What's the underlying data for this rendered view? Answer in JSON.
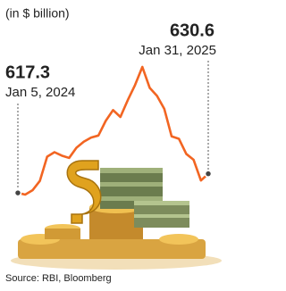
{
  "chart_data": {
    "type": "line",
    "subtitle": "(in $ billion)",
    "categories": [
      "Jan 5, 2024",
      null,
      null,
      null,
      null,
      null,
      null,
      null,
      null,
      null,
      null,
      null,
      null,
      null,
      null,
      null,
      null,
      null,
      null,
      null,
      null,
      null,
      null,
      null,
      null,
      null,
      "Jan 31, 2025"
    ],
    "values": [
      617.3,
      616.1,
      619.1,
      625.6,
      642.5,
      645.6,
      643.2,
      641.6,
      648.7,
      652.9,
      655.8,
      657.2,
      667.4,
      674.9,
      670.1,
      681.7,
      692.3,
      704.9,
      690.4,
      684.8,
      675.7,
      656.6,
      654.9,
      644.4,
      640.3,
      625.9,
      630.6
    ],
    "color": "#f26522",
    "source": "Source: RBI, Bloomberg"
  }
}
